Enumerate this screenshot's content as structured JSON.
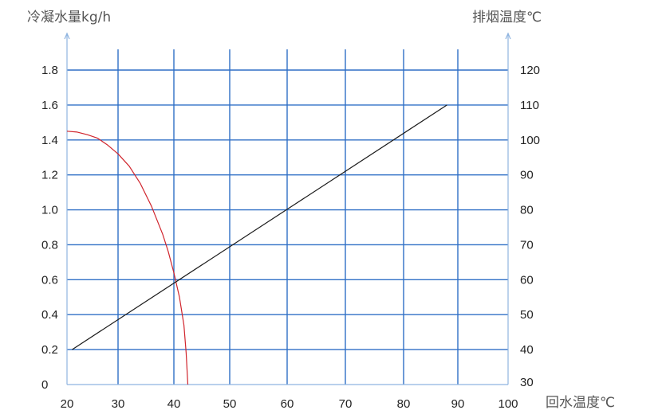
{
  "chart_data": {
    "type": "line",
    "title": "",
    "ylabel_left": "冷凝水量kg/h",
    "ylabel_right": "排烟温度℃",
    "xlabel": "回水温度℃",
    "x_ticks": [
      "20",
      "30",
      "40",
      "50",
      "60",
      "70",
      "80",
      "90",
      "100"
    ],
    "y_left_ticks": [
      "0",
      "0.2",
      "0.4",
      "0.6",
      "0.8",
      "1.0",
      "1.2",
      "1.4",
      "1.6",
      "1.8"
    ],
    "y_right_ticks": [
      "30",
      "40",
      "50",
      "60",
      "70",
      "80",
      "90",
      "100",
      "110",
      "120"
    ],
    "xlim": [
      20,
      100
    ],
    "ylim_left": [
      0,
      1.8
    ],
    "ylim_right": [
      30,
      120
    ],
    "grid": true,
    "series": [
      {
        "axis": "left",
        "color": "#d0242c",
        "x": [
          20,
          22,
          24,
          26,
          28,
          30,
          32,
          34,
          36,
          38,
          39,
          40,
          41,
          41.8,
          42.2,
          42.5
        ],
        "y": [
          1.45,
          1.445,
          1.43,
          1.41,
          1.37,
          1.32,
          1.25,
          1.15,
          1.02,
          0.86,
          0.76,
          0.64,
          0.5,
          0.34,
          0.18,
          0.0
        ]
      },
      {
        "axis": "right",
        "color": "#1a1a1a",
        "x": [
          21,
          88
        ],
        "y": [
          40,
          110
        ]
      }
    ]
  }
}
